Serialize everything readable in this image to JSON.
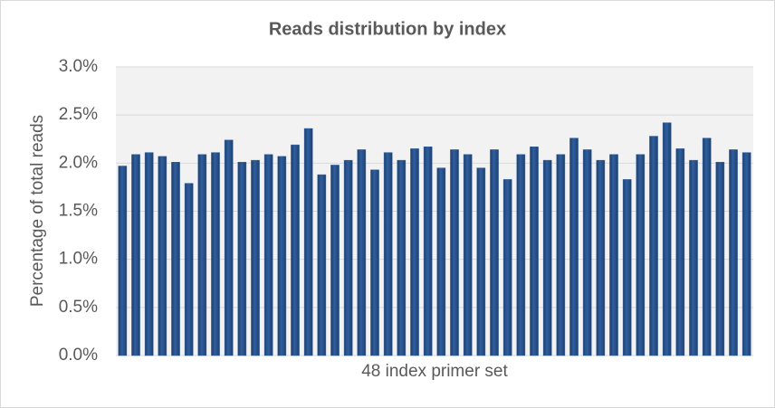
{
  "chart_data": {
    "type": "bar",
    "title": "Reads distribution by index",
    "x_label": "48 index primer set",
    "y_label": "Percentage of total reads",
    "categories": [
      null,
      null,
      null,
      null,
      null,
      null,
      null,
      null,
      null,
      null,
      null,
      null,
      null,
      null,
      null,
      null,
      null,
      null,
      null,
      null,
      null,
      null,
      null,
      null,
      null,
      null,
      null,
      null,
      null,
      null,
      null,
      null,
      null,
      null,
      null,
      null,
      null,
      null,
      null,
      null,
      null,
      null,
      null,
      null,
      null,
      null,
      null,
      null
    ],
    "values": [
      1.97,
      2.09,
      2.11,
      2.07,
      2.01,
      1.79,
      2.09,
      2.11,
      2.24,
      2.01,
      2.03,
      2.09,
      2.07,
      2.19,
      2.36,
      1.88,
      1.98,
      2.03,
      2.14,
      1.93,
      2.11,
      2.03,
      2.15,
      2.17,
      1.95,
      2.14,
      2.09,
      1.95,
      2.14,
      1.83,
      2.09,
      2.17,
      2.03,
      2.09,
      2.26,
      2.14,
      2.03,
      2.09,
      1.83,
      2.09,
      2.28,
      2.42,
      2.15,
      2.03,
      2.26,
      2.01,
      2.14,
      2.11
    ],
    "color": "#2f5f9e",
    "ylim": [
      0,
      3
    ],
    "yticks": [
      {
        "value": 0,
        "label": "0.0%"
      },
      {
        "value": 0.5,
        "label": "0.5%"
      },
      {
        "value": 1,
        "label": "1.0%"
      },
      {
        "value": 1.5,
        "label": "1.5%"
      },
      {
        "value": 2,
        "label": "2.0%"
      },
      {
        "value": 2.5,
        "label": "2.5%"
      },
      {
        "value": 3,
        "label": "3.0%"
      }
    ],
    "grid": true
  }
}
